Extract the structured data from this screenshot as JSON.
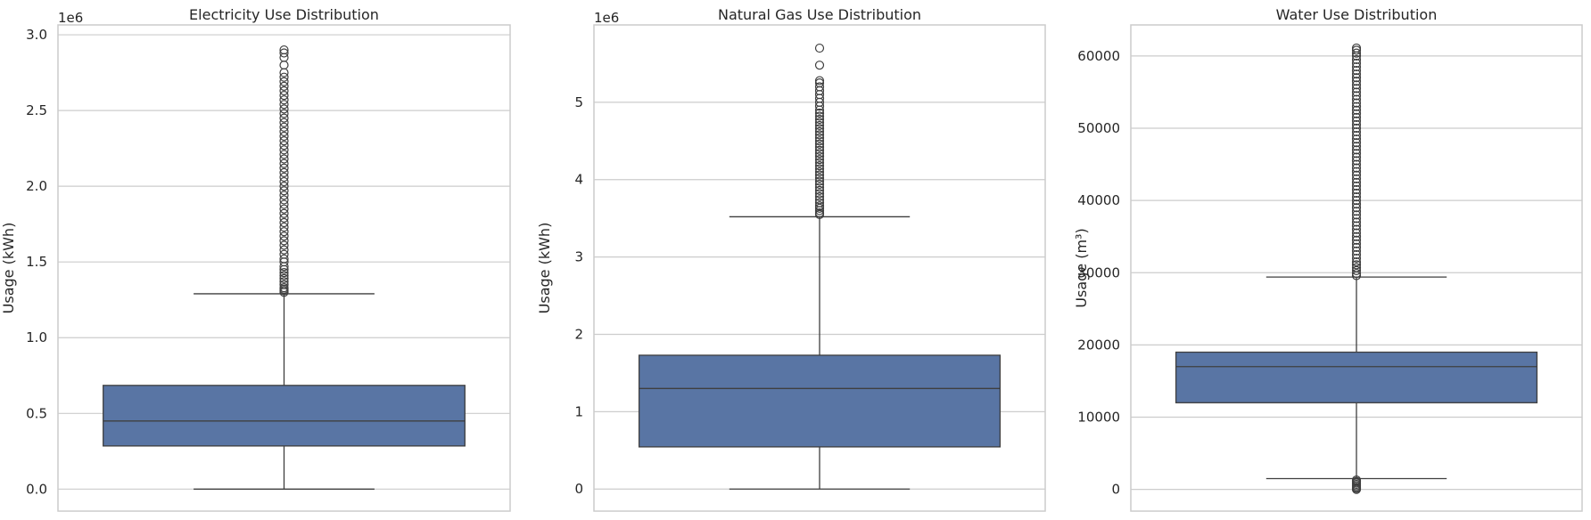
{
  "figure": {
    "background": "#ffffff"
  },
  "style": {
    "box_fill": "#5975a4",
    "line_color": "#3f3f3f",
    "grid_color": "#cccccc",
    "frame_color": "#cccccc",
    "text_color": "#262626"
  },
  "chart_data": [
    {
      "type": "box",
      "title": "Electricity Use Distribution",
      "ylabel": "Usage (kWh)",
      "xlabel": "",
      "offset_label": "1e6",
      "scale": 1000000,
      "ylim": [
        -0.145,
        3.065
      ],
      "yticks": [
        0.0,
        0.5,
        1.0,
        1.5,
        2.0,
        2.5,
        3.0
      ],
      "ytick_labels": [
        "0.0",
        "0.5",
        "1.0",
        "1.5",
        "2.0",
        "2.5",
        "3.0"
      ],
      "grid": true,
      "box": {
        "whisker_low": 0.0,
        "q1": 0.285,
        "median": 0.45,
        "q3": 0.685,
        "whisker_high": 1.29
      },
      "outliers": [
        1.3,
        1.31,
        1.32,
        1.33,
        1.35,
        1.37,
        1.39,
        1.41,
        1.43,
        1.45,
        1.47,
        1.5,
        1.52,
        1.55,
        1.58,
        1.61,
        1.64,
        1.67,
        1.7,
        1.73,
        1.76,
        1.79,
        1.82,
        1.85,
        1.88,
        1.91,
        1.94,
        1.97,
        2.0,
        2.03,
        2.06,
        2.09,
        2.12,
        2.15,
        2.18,
        2.21,
        2.24,
        2.27,
        2.3,
        2.33,
        2.36,
        2.39,
        2.42,
        2.45,
        2.48,
        2.51,
        2.54,
        2.57,
        2.6,
        2.63,
        2.66,
        2.69,
        2.72,
        2.75,
        2.8,
        2.85,
        2.88,
        2.9
      ]
    },
    {
      "type": "box",
      "title": "Natural Gas Use Distribution",
      "ylabel": "Usage (kWh)",
      "xlabel": "",
      "offset_label": "1e6",
      "scale": 1000000,
      "ylim": [
        -0.285,
        6.0
      ],
      "yticks": [
        0,
        1,
        2,
        3,
        4,
        5
      ],
      "ytick_labels": [
        "0",
        "1",
        "2",
        "3",
        "4",
        "5"
      ],
      "grid": true,
      "box": {
        "whisker_low": 0.0,
        "q1": 0.545,
        "median": 1.3,
        "q3": 1.73,
        "whisker_high": 3.52
      },
      "outliers": [
        3.55,
        3.57,
        3.6,
        3.63,
        3.66,
        3.7,
        3.74,
        3.78,
        3.82,
        3.86,
        3.9,
        3.94,
        3.98,
        4.02,
        4.06,
        4.1,
        4.14,
        4.18,
        4.22,
        4.26,
        4.3,
        4.34,
        4.38,
        4.42,
        4.46,
        4.5,
        4.54,
        4.58,
        4.62,
        4.66,
        4.7,
        4.74,
        4.78,
        4.82,
        4.86,
        4.9,
        4.95,
        5.0,
        5.05,
        5.1,
        5.15,
        5.2,
        5.25,
        5.28,
        5.48,
        5.7
      ]
    },
    {
      "type": "box",
      "title": "Water Use Distribution",
      "ylabel": "Usage (m³)",
      "xlabel": "",
      "offset_label": "",
      "scale": 1,
      "ylim": [
        -3000,
        64300
      ],
      "yticks": [
        0,
        10000,
        20000,
        30000,
        40000,
        50000,
        60000
      ],
      "ytick_labels": [
        "0",
        "10000",
        "20000",
        "30000",
        "40000",
        "50000",
        "60000"
      ],
      "grid": true,
      "box": {
        "whisker_low": 1500,
        "q1": 12000,
        "median": 17000,
        "q3": 19000,
        "whisker_high": 29400
      },
      "outliers": [
        0,
        150,
        300,
        500,
        700,
        900,
        1100,
        1300,
        29600,
        29900,
        30300,
        30700,
        31100,
        31500,
        32000,
        32500,
        33000,
        33500,
        34000,
        34500,
        35000,
        35500,
        36000,
        36500,
        37000,
        37500,
        38000,
        38500,
        39000,
        39500,
        40000,
        40500,
        41000,
        41500,
        42000,
        42500,
        43000,
        43500,
        44000,
        44500,
        45000,
        45500,
        46000,
        46500,
        47000,
        47500,
        48000,
        48500,
        49000,
        49500,
        50000,
        50500,
        51000,
        51500,
        52000,
        52500,
        53000,
        53500,
        54000,
        54500,
        55000,
        55500,
        56000,
        56500,
        57000,
        57500,
        58000,
        58500,
        59000,
        59500,
        60000,
        60400,
        60800,
        61100
      ]
    }
  ]
}
